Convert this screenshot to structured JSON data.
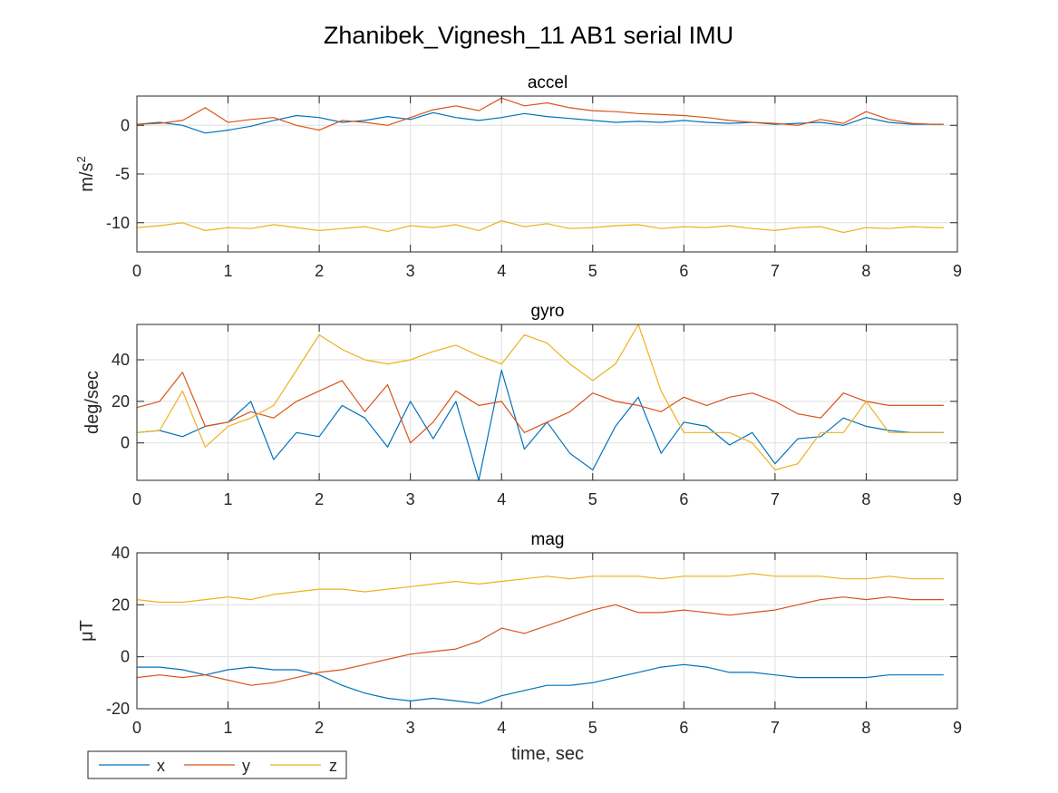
{
  "figure": {
    "title": "Zhanibek_Vignesh_11 AB1 serial IMU"
  },
  "legend": {
    "placement": "bottom-left",
    "entries": [
      "x",
      "y",
      "z"
    ]
  },
  "colors": {
    "x": "#0072BD",
    "y": "#D95319",
    "z": "#EDB120"
  },
  "chart_data": [
    {
      "type": "line",
      "title": "accel",
      "ylabel_base": "m/s",
      "ylabel_sup": "2",
      "xlim": [
        0,
        9
      ],
      "ylim": [
        -13,
        3
      ],
      "xticks": [
        0,
        1,
        2,
        3,
        4,
        5,
        6,
        7,
        8,
        9
      ],
      "yticks": [
        -10,
        -5,
        0
      ],
      "grid": true,
      "x": [
        0,
        0.25,
        0.5,
        0.75,
        1,
        1.25,
        1.5,
        1.75,
        2,
        2.25,
        2.5,
        2.75,
        3,
        3.25,
        3.5,
        3.75,
        4,
        4.25,
        4.5,
        4.75,
        5,
        5.25,
        5.5,
        5.75,
        6,
        6.25,
        6.5,
        6.75,
        7,
        7.25,
        7.5,
        7.75,
        8,
        8.25,
        8.5,
        8.75,
        8.85
      ],
      "series": [
        {
          "name": "x",
          "values": [
            0.1,
            0.3,
            0,
            -0.8,
            -0.5,
            -0.1,
            0.5,
            1.0,
            0.8,
            0.3,
            0.5,
            0.9,
            0.6,
            1.3,
            0.8,
            0.5,
            0.8,
            1.2,
            0.9,
            0.7,
            0.5,
            0.3,
            0.4,
            0.3,
            0.5,
            0.3,
            0.2,
            0.3,
            0.1,
            0.2,
            0.3,
            0,
            0.8,
            0.3,
            0.1,
            0.1,
            0.1
          ]
        },
        {
          "name": "y",
          "values": [
            0.1,
            0.2,
            0.5,
            1.8,
            0.3,
            0.6,
            0.8,
            0,
            -0.5,
            0.5,
            0.3,
            0,
            0.8,
            1.6,
            2.0,
            1.5,
            2.8,
            2.0,
            2.3,
            1.8,
            1.5,
            1.4,
            1.2,
            1.1,
            1.0,
            0.8,
            0.5,
            0.3,
            0.2,
            0,
            0.6,
            0.2,
            1.4,
            0.6,
            0.2,
            0.1,
            0.1
          ]
        },
        {
          "name": "z",
          "values": [
            -10.5,
            -10.3,
            -10.0,
            -10.8,
            -10.5,
            -10.6,
            -10.2,
            -10.5,
            -10.8,
            -10.6,
            -10.4,
            -10.9,
            -10.3,
            -10.5,
            -10.2,
            -10.8,
            -9.8,
            -10.4,
            -10.1,
            -10.6,
            -10.5,
            -10.3,
            -10.2,
            -10.6,
            -10.4,
            -10.5,
            -10.3,
            -10.6,
            -10.8,
            -10.5,
            -10.4,
            -11.0,
            -10.5,
            -10.6,
            -10.4,
            -10.5,
            -10.5
          ]
        }
      ]
    },
    {
      "type": "line",
      "title": "gyro",
      "ylabel": "deg/sec",
      "xlim": [
        0,
        9
      ],
      "ylim": [
        -18,
        57
      ],
      "xticks": [
        0,
        1,
        2,
        3,
        4,
        5,
        6,
        7,
        8,
        9
      ],
      "yticks": [
        0,
        20,
        40
      ],
      "grid": true,
      "x": [
        0,
        0.25,
        0.5,
        0.75,
        1,
        1.25,
        1.5,
        1.75,
        2,
        2.25,
        2.5,
        2.75,
        3,
        3.25,
        3.5,
        3.75,
        4,
        4.25,
        4.5,
        4.75,
        5,
        5.25,
        5.5,
        5.75,
        6,
        6.25,
        6.5,
        6.75,
        7,
        7.25,
        7.5,
        7.75,
        8,
        8.25,
        8.5,
        8.75,
        8.85
      ],
      "series": [
        {
          "name": "x",
          "values": [
            5,
            6,
            3,
            8,
            10,
            20,
            -8,
            5,
            3,
            18,
            12,
            -2,
            20,
            2,
            20,
            -18,
            35,
            -3,
            10,
            -5,
            -13,
            8,
            22,
            -5,
            10,
            8,
            -1,
            5,
            -10,
            2,
            3,
            12,
            8,
            6,
            5,
            5,
            5
          ]
        },
        {
          "name": "y",
          "values": [
            17,
            20,
            34,
            8,
            10,
            15,
            12,
            20,
            25,
            30,
            15,
            28,
            0,
            10,
            25,
            18,
            20,
            5,
            10,
            15,
            24,
            20,
            18,
            15,
            22,
            18,
            22,
            24,
            20,
            14,
            12,
            24,
            20,
            18,
            18,
            18,
            18
          ]
        },
        {
          "name": "z",
          "values": [
            5,
            6,
            25,
            -2,
            8,
            12,
            18,
            35,
            52,
            45,
            40,
            38,
            40,
            44,
            47,
            42,
            38,
            52,
            48,
            38,
            30,
            38,
            57,
            25,
            5,
            5,
            5,
            0,
            -13,
            -10,
            5,
            5,
            20,
            5,
            5,
            5,
            5
          ]
        }
      ]
    },
    {
      "type": "line",
      "title": "mag",
      "ylabel": "μT",
      "xlabel": "time, sec",
      "xlim": [
        0,
        9
      ],
      "ylim": [
        -20,
        40
      ],
      "xticks": [
        0,
        1,
        2,
        3,
        4,
        5,
        6,
        7,
        8,
        9
      ],
      "yticks": [
        -20,
        0,
        20,
        40
      ],
      "grid": true,
      "x": [
        0,
        0.25,
        0.5,
        0.75,
        1,
        1.25,
        1.5,
        1.75,
        2,
        2.25,
        2.5,
        2.75,
        3,
        3.25,
        3.5,
        3.75,
        4,
        4.25,
        4.5,
        4.75,
        5,
        5.25,
        5.5,
        5.75,
        6,
        6.25,
        6.5,
        6.75,
        7,
        7.25,
        7.5,
        7.75,
        8,
        8.25,
        8.5,
        8.75,
        8.85
      ],
      "series": [
        {
          "name": "x",
          "values": [
            -4,
            -4,
            -5,
            -7,
            -5,
            -4,
            -5,
            -5,
            -7,
            -11,
            -14,
            -16,
            -17,
            -16,
            -17,
            -18,
            -15,
            -13,
            -11,
            -11,
            -10,
            -8,
            -6,
            -4,
            -3,
            -4,
            -6,
            -6,
            -7,
            -8,
            -8,
            -8,
            -8,
            -7,
            -7,
            -7,
            -7
          ]
        },
        {
          "name": "y",
          "values": [
            -8,
            -7,
            -8,
            -7,
            -9,
            -11,
            -10,
            -8,
            -6,
            -5,
            -3,
            -1,
            1,
            2,
            3,
            6,
            11,
            9,
            12,
            15,
            18,
            20,
            17,
            17,
            18,
            17,
            16,
            17,
            18,
            20,
            22,
            23,
            22,
            23,
            22,
            22,
            22
          ]
        },
        {
          "name": "z",
          "values": [
            22,
            21,
            21,
            22,
            23,
            22,
            24,
            25,
            26,
            26,
            25,
            26,
            27,
            28,
            29,
            28,
            29,
            30,
            31,
            30,
            31,
            31,
            31,
            30,
            31,
            31,
            31,
            32,
            31,
            31,
            31,
            30,
            30,
            31,
            30,
            30,
            30
          ]
        }
      ]
    }
  ]
}
